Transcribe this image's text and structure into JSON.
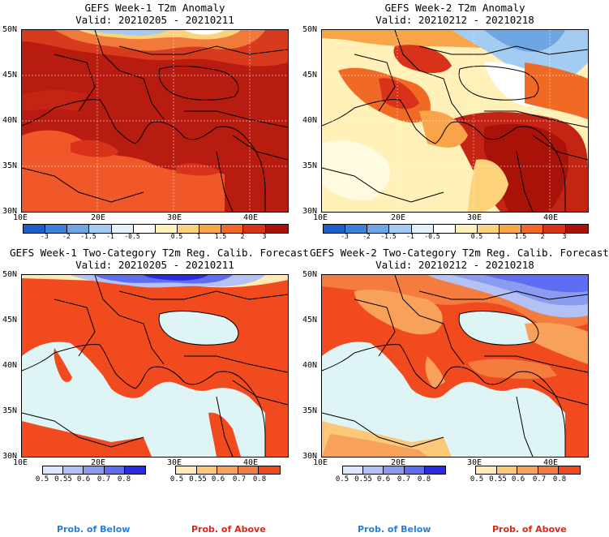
{
  "panels": [
    {
      "id": "p1",
      "title": "GEFS Week-1 T2m Anomaly",
      "valid": "Valid: 20210205 - 20210211"
    },
    {
      "id": "p2",
      "title": "GEFS Week-2 T2m Anomaly",
      "valid": "Valid: 20210212 - 20210218"
    },
    {
      "id": "p3",
      "title": "GEFS Week-1 Two-Category T2m Reg. Calib. Forecast",
      "valid": "Valid: 20210205 - 20210211"
    },
    {
      "id": "p4",
      "title": "GEFS Week-2 Two-Category T2m Reg. Calib. Forecast",
      "valid": "Valid: 20210212 - 20210218"
    }
  ],
  "lat_ticks": [
    "50N",
    "45N",
    "40N",
    "35N",
    "30N"
  ],
  "lon_ticks": [
    "10E",
    "20E",
    "30E",
    "40E"
  ],
  "anomaly_colorbar": {
    "labels": [
      "-3",
      "-2",
      "-1.5",
      "-1",
      "-0.5",
      "0.5",
      "1",
      "1.5",
      "2",
      "3"
    ],
    "colors": [
      "#1a5fc8",
      "#3c7fd8",
      "#6ea6e4",
      "#a4ccf2",
      "#e4f1fb",
      "#ffffff",
      "#fff1b8",
      "#fcd27a",
      "#f9a34a",
      "#f06a26",
      "#d8321a",
      "#a81208"
    ]
  },
  "below_colorbar": {
    "labels": [
      "0.5",
      "0.55",
      "0.6",
      "0.7",
      "0.8"
    ],
    "colors": [
      "#dfe6ff",
      "#b3c1f5",
      "#8b9bf0",
      "#5f6df0",
      "#2a2ae0"
    ]
  },
  "above_colorbar": {
    "labels": [
      "0.5",
      "0.55",
      "0.6",
      "0.7",
      "0.8"
    ],
    "colors": [
      "#ffe9b5",
      "#fbc879",
      "#f7a15a",
      "#f47c3e",
      "#f04a1e"
    ]
  },
  "footer": {
    "below_label": "Prob. of Below",
    "above_label": "Prob. of Above",
    "below_color": "#2a7ed8",
    "above_color": "#d8281a"
  }
}
